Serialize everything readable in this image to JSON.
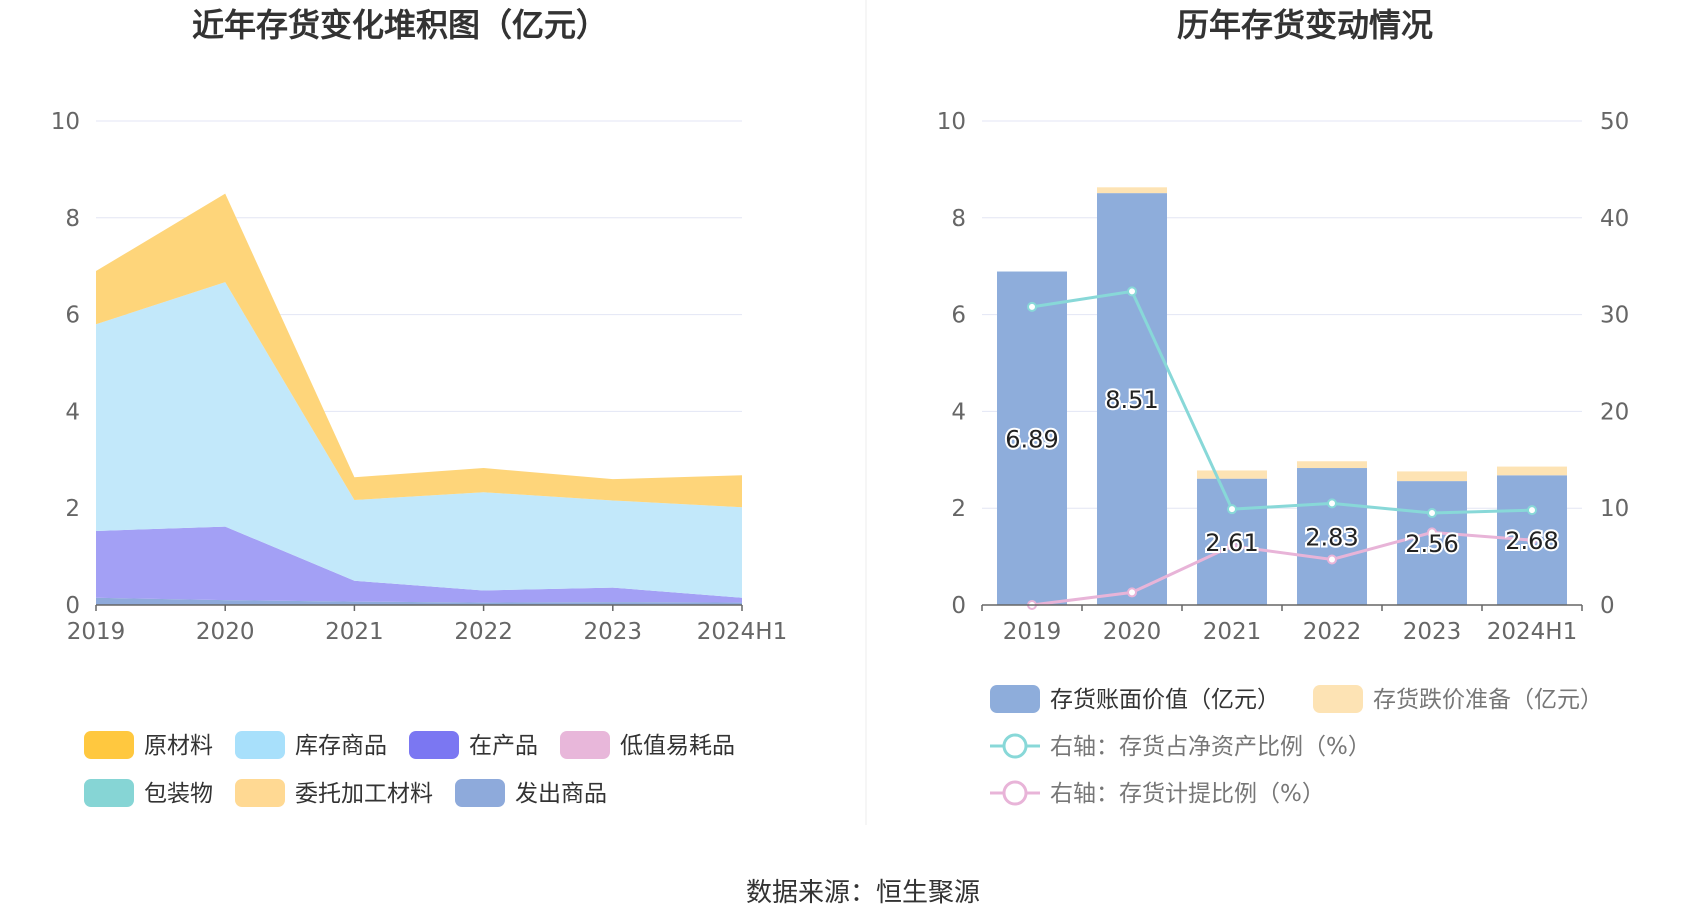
{
  "left_chart": {
    "title": "近年存货变化堆积图（亿元）",
    "chart_data": {
      "type": "area",
      "stacked": true,
      "categories": [
        "2019",
        "2020",
        "2021",
        "2022",
        "2023",
        "2024H1"
      ],
      "ylim": [
        0,
        10
      ],
      "yticks": [
        0,
        2,
        4,
        6,
        8,
        10
      ],
      "grid": true,
      "legend_position": "bottom",
      "series": [
        {
          "name": "发出商品",
          "color": "#8eaadb",
          "values": [
            0.15,
            0.1,
            0.07,
            0.05,
            0.06,
            0.05
          ]
        },
        {
          "name": "委托加工材料",
          "color": "#fdd69b",
          "values": [
            0,
            0,
            0,
            0,
            0,
            0
          ]
        },
        {
          "name": "包装物",
          "color": "#86d5d5",
          "values": [
            0,
            0,
            0,
            0,
            0,
            0
          ]
        },
        {
          "name": "低值易耗品",
          "color": "#e5b6d9",
          "values": [
            0,
            0,
            0,
            0,
            0,
            0
          ]
        },
        {
          "name": "在产品",
          "color": "#a3a0f5",
          "values": [
            1.38,
            1.52,
            0.43,
            0.25,
            0.3,
            0.1
          ]
        },
        {
          "name": "库存商品",
          "color": "#c2e8fa",
          "values": [
            4.27,
            5.05,
            1.67,
            2.03,
            1.8,
            1.87
          ]
        },
        {
          "name": "原材料",
          "color": "#fed57a",
          "values": [
            1.1,
            1.83,
            0.47,
            0.5,
            0.44,
            0.66
          ]
        }
      ]
    },
    "legend": [
      {
        "name": "原材料",
        "color": "#ffc83f"
      },
      {
        "name": "库存商品",
        "color": "#a8e0fb"
      },
      {
        "name": "在产品",
        "color": "#7b77f2"
      },
      {
        "name": "低值易耗品",
        "color": "#e8b7da"
      },
      {
        "name": "包装物",
        "color": "#86d5d5"
      },
      {
        "name": "委托加工材料",
        "color": "#ffd993"
      },
      {
        "name": "发出商品",
        "color": "#8eaadb"
      }
    ]
  },
  "right_chart": {
    "title": "历年存货变动情况",
    "chart_data": {
      "type": "bar",
      "categories": [
        "2019",
        "2020",
        "2021",
        "2022",
        "2023",
        "2024H1"
      ],
      "ylim": [
        0,
        10
      ],
      "yticks": [
        0,
        2,
        4,
        6,
        8,
        10
      ],
      "y2lim": [
        0,
        50
      ],
      "y2ticks": [
        0,
        10,
        20,
        30,
        40,
        50
      ],
      "grid": true,
      "legend_position": "bottom",
      "series": [
        {
          "name": "存货账面价值（亿元）",
          "color": "#8eaddb",
          "values": [
            6.89,
            8.51,
            2.61,
            2.83,
            2.56,
            2.68
          ],
          "labels": [
            "6.89",
            "8.51",
            "2.61",
            "2.83",
            "2.56",
            "2.68"
          ]
        },
        {
          "name": "存货跌价准备（亿元）",
          "color": "#fde3b4",
          "values": [
            0,
            0.12,
            0.17,
            0.14,
            0.2,
            0.18
          ]
        },
        {
          "name": "右轴：存货占净资产比例（%）",
          "color": "#88d8d8",
          "axis": "right",
          "values": [
            30.8,
            32.4,
            9.9,
            10.5,
            9.5,
            9.8
          ]
        },
        {
          "name": "右轴：存货计提比例（%）",
          "color": "#e8b4d8",
          "axis": "right",
          "values": [
            0,
            1.3,
            6.1,
            4.7,
            7.5,
            6.7
          ]
        }
      ]
    }
  },
  "footer": {
    "source": "数据来源：恒生聚源"
  }
}
